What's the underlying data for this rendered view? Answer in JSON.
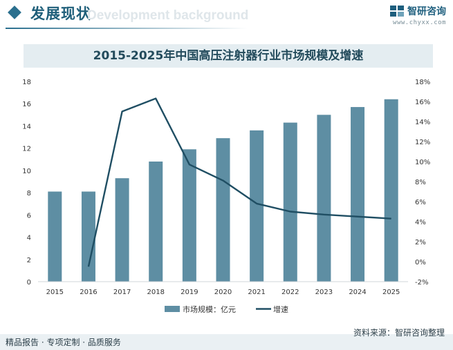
{
  "header": {
    "title": "发展现状",
    "ghost_text": "Development background"
  },
  "brand": {
    "name": "智研咨询",
    "url": "www.chyxx.com"
  },
  "watermark": {
    "text": "智研咨询"
  },
  "chart_data": {
    "type": "bar+line",
    "title": "2015-2025年中国高压注射器行业市场规模及增速",
    "categories": [
      "2015",
      "2016",
      "2017",
      "2018",
      "2019",
      "2020",
      "2021",
      "2022",
      "2023",
      "2024",
      "2025"
    ],
    "series": [
      {
        "name": "市场规模：亿元",
        "type": "bar",
        "axis": "left",
        "values": [
          8.1,
          8.1,
          9.3,
          10.8,
          11.9,
          12.9,
          13.6,
          14.3,
          15.0,
          15.7,
          16.4
        ]
      },
      {
        "name": "增速",
        "type": "line",
        "axis": "right",
        "unit": "%",
        "values": [
          null,
          -0.5,
          15.0,
          16.3,
          9.7,
          8.1,
          5.8,
          5.0,
          4.7,
          4.5,
          4.3
        ]
      }
    ],
    "y_left": {
      "min": 0,
      "max": 18,
      "ticks": [
        "0",
        "2",
        "4",
        "6",
        "8",
        "10",
        "12",
        "14",
        "16",
        "18"
      ]
    },
    "y_right": {
      "min": -2,
      "max": 18,
      "ticks": [
        "-2%",
        "0%",
        "2%",
        "4%",
        "6%",
        "8%",
        "10%",
        "12%",
        "14%",
        "16%",
        "18%"
      ]
    },
    "legend": [
      "市场规模：亿元",
      "增速"
    ],
    "colors": {
      "bar": "#5e8ea3",
      "line": "#1f4e63"
    }
  },
  "footer": {
    "left": "精品报告 · 专项定制 · 品质服务",
    "source": "资料来源：智研咨询整理"
  }
}
